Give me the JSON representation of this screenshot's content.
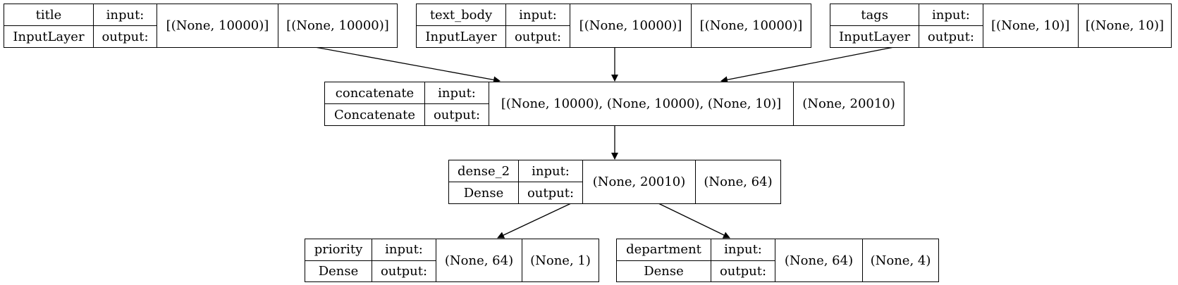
{
  "nodes": {
    "title": {
      "name": "title",
      "type": "InputLayer",
      "in_label": "input:",
      "out_label": "output:",
      "input_shape": "[(None, 10000)]",
      "output_shape": "[(None, 10000)]"
    },
    "text_body": {
      "name": "text_body",
      "type": "InputLayer",
      "in_label": "input:",
      "out_label": "output:",
      "input_shape": "[(None, 10000)]",
      "output_shape": "[(None, 10000)]"
    },
    "tags": {
      "name": "tags",
      "type": "InputLayer",
      "in_label": "input:",
      "out_label": "output:",
      "input_shape": "[(None, 10)]",
      "output_shape": "[(None, 10)]"
    },
    "concatenate": {
      "name": "concatenate",
      "type": "Concatenate",
      "in_label": "input:",
      "out_label": "output:",
      "input_shape": "[(None, 10000), (None, 10000), (None, 10)]",
      "output_shape": "(None, 20010)"
    },
    "dense_2": {
      "name": "dense_2",
      "type": "Dense",
      "in_label": "input:",
      "out_label": "output:",
      "input_shape": "(None, 20010)",
      "output_shape": "(None, 64)"
    },
    "priority": {
      "name": "priority",
      "type": "Dense",
      "in_label": "input:",
      "out_label": "output:",
      "input_shape": "(None, 64)",
      "output_shape": "(None, 1)"
    },
    "department": {
      "name": "department",
      "type": "Dense",
      "in_label": "input:",
      "out_label": "output:",
      "input_shape": "(None, 64)",
      "output_shape": "(None, 4)"
    }
  },
  "edges": [
    {
      "from": "title",
      "to": "concatenate"
    },
    {
      "from": "text_body",
      "to": "concatenate"
    },
    {
      "from": "tags",
      "to": "concatenate"
    },
    {
      "from": "concatenate",
      "to": "dense_2"
    },
    {
      "from": "dense_2",
      "to": "priority"
    },
    {
      "from": "dense_2",
      "to": "department"
    }
  ]
}
